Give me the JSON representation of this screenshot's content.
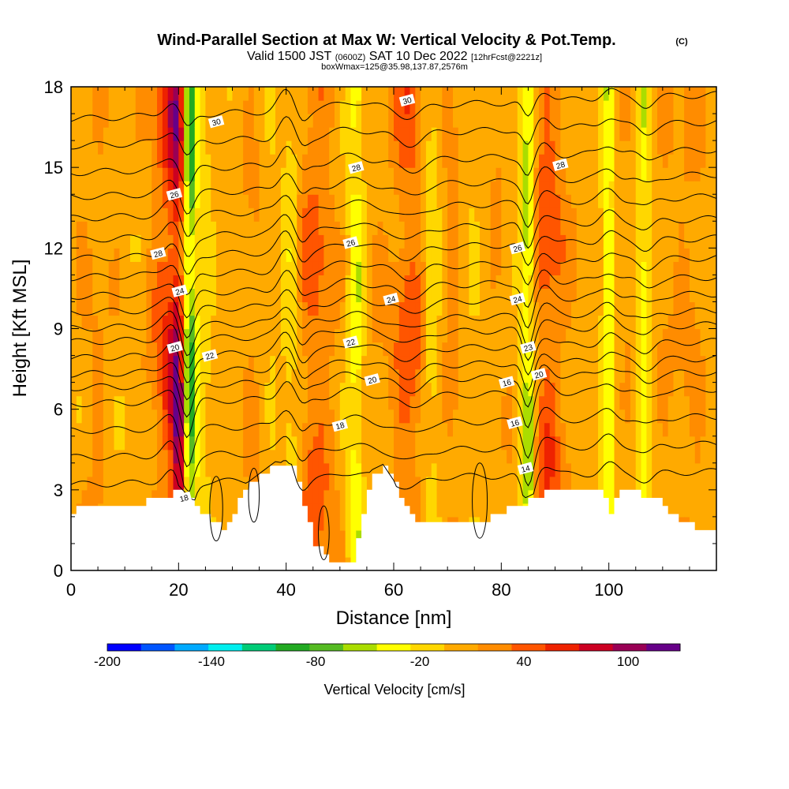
{
  "title": {
    "main": "Wind-Parallel Section at Max W: Vertical Velocity & Pot.Temp.",
    "copyright": "(C)",
    "valid_prefix": "Valid 1500 JST",
    "valid_zulu": "(0600Z)",
    "valid_date": "SAT 10 Dec 2022",
    "forecast": "[12hrFcst@2221z]",
    "box": "boxWmax=125@35.98,137.87,2576m"
  },
  "chart_data": {
    "type": "heatmap",
    "xlabel": "Distance [nm]",
    "ylabel": "Height [Kft MSL]",
    "xlim": [
      0,
      120
    ],
    "ylim": [
      0,
      18
    ],
    "xticks": [
      0,
      20,
      40,
      60,
      80,
      100
    ],
    "yticks": [
      0,
      3,
      6,
      9,
      12,
      15,
      18
    ],
    "colorbar": {
      "label": "Vertical Velocity [cm/s]",
      "range": [
        -200,
        130
      ],
      "step": 20,
      "tick_values": [
        -200,
        -140,
        -80,
        -20,
        40,
        100
      ],
      "colors": [
        "#0000ff",
        "#0055ff",
        "#00aaff",
        "#00eeee",
        "#00cc77",
        "#22aa22",
        "#55bb22",
        "#aadd00",
        "#ffff00",
        "#ffd700",
        "#ffaa00",
        "#ff8c00",
        "#ff5500",
        "#ee2200",
        "#cc0022",
        "#990055",
        "#660088"
      ]
    },
    "velocity_bands": [
      {
        "center": 3,
        "width": 3,
        "value": 10
      },
      {
        "center": 6,
        "width": 3,
        "value": 12
      },
      {
        "center": 12,
        "width": 2,
        "value": 0
      },
      {
        "center": 15,
        "width": 3,
        "value": 12
      },
      {
        "center": 18,
        "width": 2.5,
        "value": 55
      },
      {
        "center": 20,
        "width": 1.5,
        "value": 80
      },
      {
        "center": 22,
        "width": 1.2,
        "value": -110
      },
      {
        "center": 24.5,
        "width": 2,
        "value": -25
      },
      {
        "center": 27,
        "width": 2,
        "value": 10
      },
      {
        "center": 31,
        "width": 2.5,
        "value": 5
      },
      {
        "center": 34,
        "width": 2.5,
        "value": 15
      },
      {
        "center": 38,
        "width": 2.5,
        "value": -5
      },
      {
        "center": 41,
        "width": 1.5,
        "value": -25
      },
      {
        "center": 45,
        "width": 3,
        "value": 45
      },
      {
        "center": 48.5,
        "width": 2.5,
        "value": 12
      },
      {
        "center": 53,
        "width": 1.5,
        "value": -50
      },
      {
        "center": 56,
        "width": 2,
        "value": 12
      },
      {
        "center": 59,
        "width": 2.5,
        "value": 10
      },
      {
        "center": 63,
        "width": 3,
        "value": 50
      },
      {
        "center": 67,
        "width": 1.5,
        "value": -25
      },
      {
        "center": 71,
        "width": 2,
        "value": 25
      },
      {
        "center": 74.5,
        "width": 2,
        "value": -5
      },
      {
        "center": 79,
        "width": 3,
        "value": 15
      },
      {
        "center": 85,
        "width": 1.2,
        "value": -80
      },
      {
        "center": 88,
        "width": 2.5,
        "value": 50
      },
      {
        "center": 91,
        "width": 2.5,
        "value": 20
      },
      {
        "center": 95,
        "width": 2.5,
        "value": 5
      },
      {
        "center": 100,
        "width": 1.2,
        "value": -60
      },
      {
        "center": 103,
        "width": 2.5,
        "value": 15
      },
      {
        "center": 106.5,
        "width": 1.3,
        "value": -50
      },
      {
        "center": 110,
        "width": 3,
        "value": 12
      },
      {
        "center": 115,
        "width": 3,
        "value": 20
      }
    ],
    "terrain": [
      [
        0,
        2.2
      ],
      [
        2,
        2.4
      ],
      [
        10,
        2.4
      ],
      [
        18,
        2.7
      ],
      [
        20,
        3.0
      ],
      [
        22,
        2.6
      ],
      [
        25,
        2.0
      ],
      [
        28,
        1.6
      ],
      [
        30,
        2.2
      ],
      [
        32,
        3.0
      ],
      [
        36,
        3.6
      ],
      [
        38,
        3.9
      ],
      [
        41,
        3.8
      ],
      [
        43,
        2.5
      ],
      [
        45,
        1.0
      ],
      [
        48,
        0.4
      ],
      [
        52,
        0.4
      ],
      [
        54,
        2.2
      ],
      [
        56,
        3.6
      ],
      [
        58,
        3.8
      ],
      [
        60,
        3.2
      ],
      [
        62,
        2.3
      ],
      [
        65,
        1.7
      ],
      [
        70,
        1.7
      ],
      [
        76,
        1.7
      ],
      [
        80,
        2.2
      ],
      [
        85,
        2.6
      ],
      [
        88,
        2.9
      ],
      [
        98,
        2.9
      ],
      [
        100,
        2.2
      ],
      [
        102,
        2.9
      ],
      [
        108,
        2.8
      ],
      [
        112,
        2.0
      ],
      [
        116,
        1.6
      ],
      [
        120,
        1.6
      ]
    ],
    "isentropes": {
      "base_values": [
        14,
        16,
        16,
        18,
        18,
        20,
        20,
        22,
        22,
        24,
        24,
        26,
        26,
        26,
        28,
        28,
        28,
        30,
        30
      ],
      "base_heights": [
        3.2,
        4.2,
        5.2,
        6.2,
        6.8,
        7.3,
        7.9,
        8.5,
        9.0,
        9.6,
        10.2,
        10.9,
        11.6,
        12.3,
        13.1,
        13.9,
        14.8,
        15.8,
        16.8
      ],
      "labels": [
        {
          "x": 21,
          "y": 2.7,
          "text": "18"
        },
        {
          "x": 19.3,
          "y": 8.3,
          "text": "20"
        },
        {
          "x": 25.8,
          "y": 8.0,
          "text": "22"
        },
        {
          "x": 20.2,
          "y": 10.4,
          "text": "24"
        },
        {
          "x": 16.2,
          "y": 11.8,
          "text": "28"
        },
        {
          "x": 19.2,
          "y": 14.0,
          "text": "26"
        },
        {
          "x": 27,
          "y": 16.7,
          "text": "30"
        },
        {
          "x": 50,
          "y": 5.4,
          "text": "18"
        },
        {
          "x": 56,
          "y": 7.1,
          "text": "20"
        },
        {
          "x": 52,
          "y": 8.5,
          "text": "22"
        },
        {
          "x": 59.5,
          "y": 10.1,
          "text": "24"
        },
        {
          "x": 52,
          "y": 12.2,
          "text": "26"
        },
        {
          "x": 53,
          "y": 15.0,
          "text": "28"
        },
        {
          "x": 62.5,
          "y": 17.5,
          "text": "30"
        },
        {
          "x": 84.5,
          "y": 3.8,
          "text": "14"
        },
        {
          "x": 82.5,
          "y": 5.5,
          "text": "16"
        },
        {
          "x": 81,
          "y": 7.0,
          "text": "16"
        },
        {
          "x": 87,
          "y": 7.3,
          "text": "20"
        },
        {
          "x": 85,
          "y": 8.3,
          "text": "23"
        },
        {
          "x": 83,
          "y": 10.1,
          "text": "24"
        },
        {
          "x": 83,
          "y": 12.0,
          "text": "26"
        },
        {
          "x": 91,
          "y": 15.1,
          "text": "28"
        }
      ]
    }
  }
}
